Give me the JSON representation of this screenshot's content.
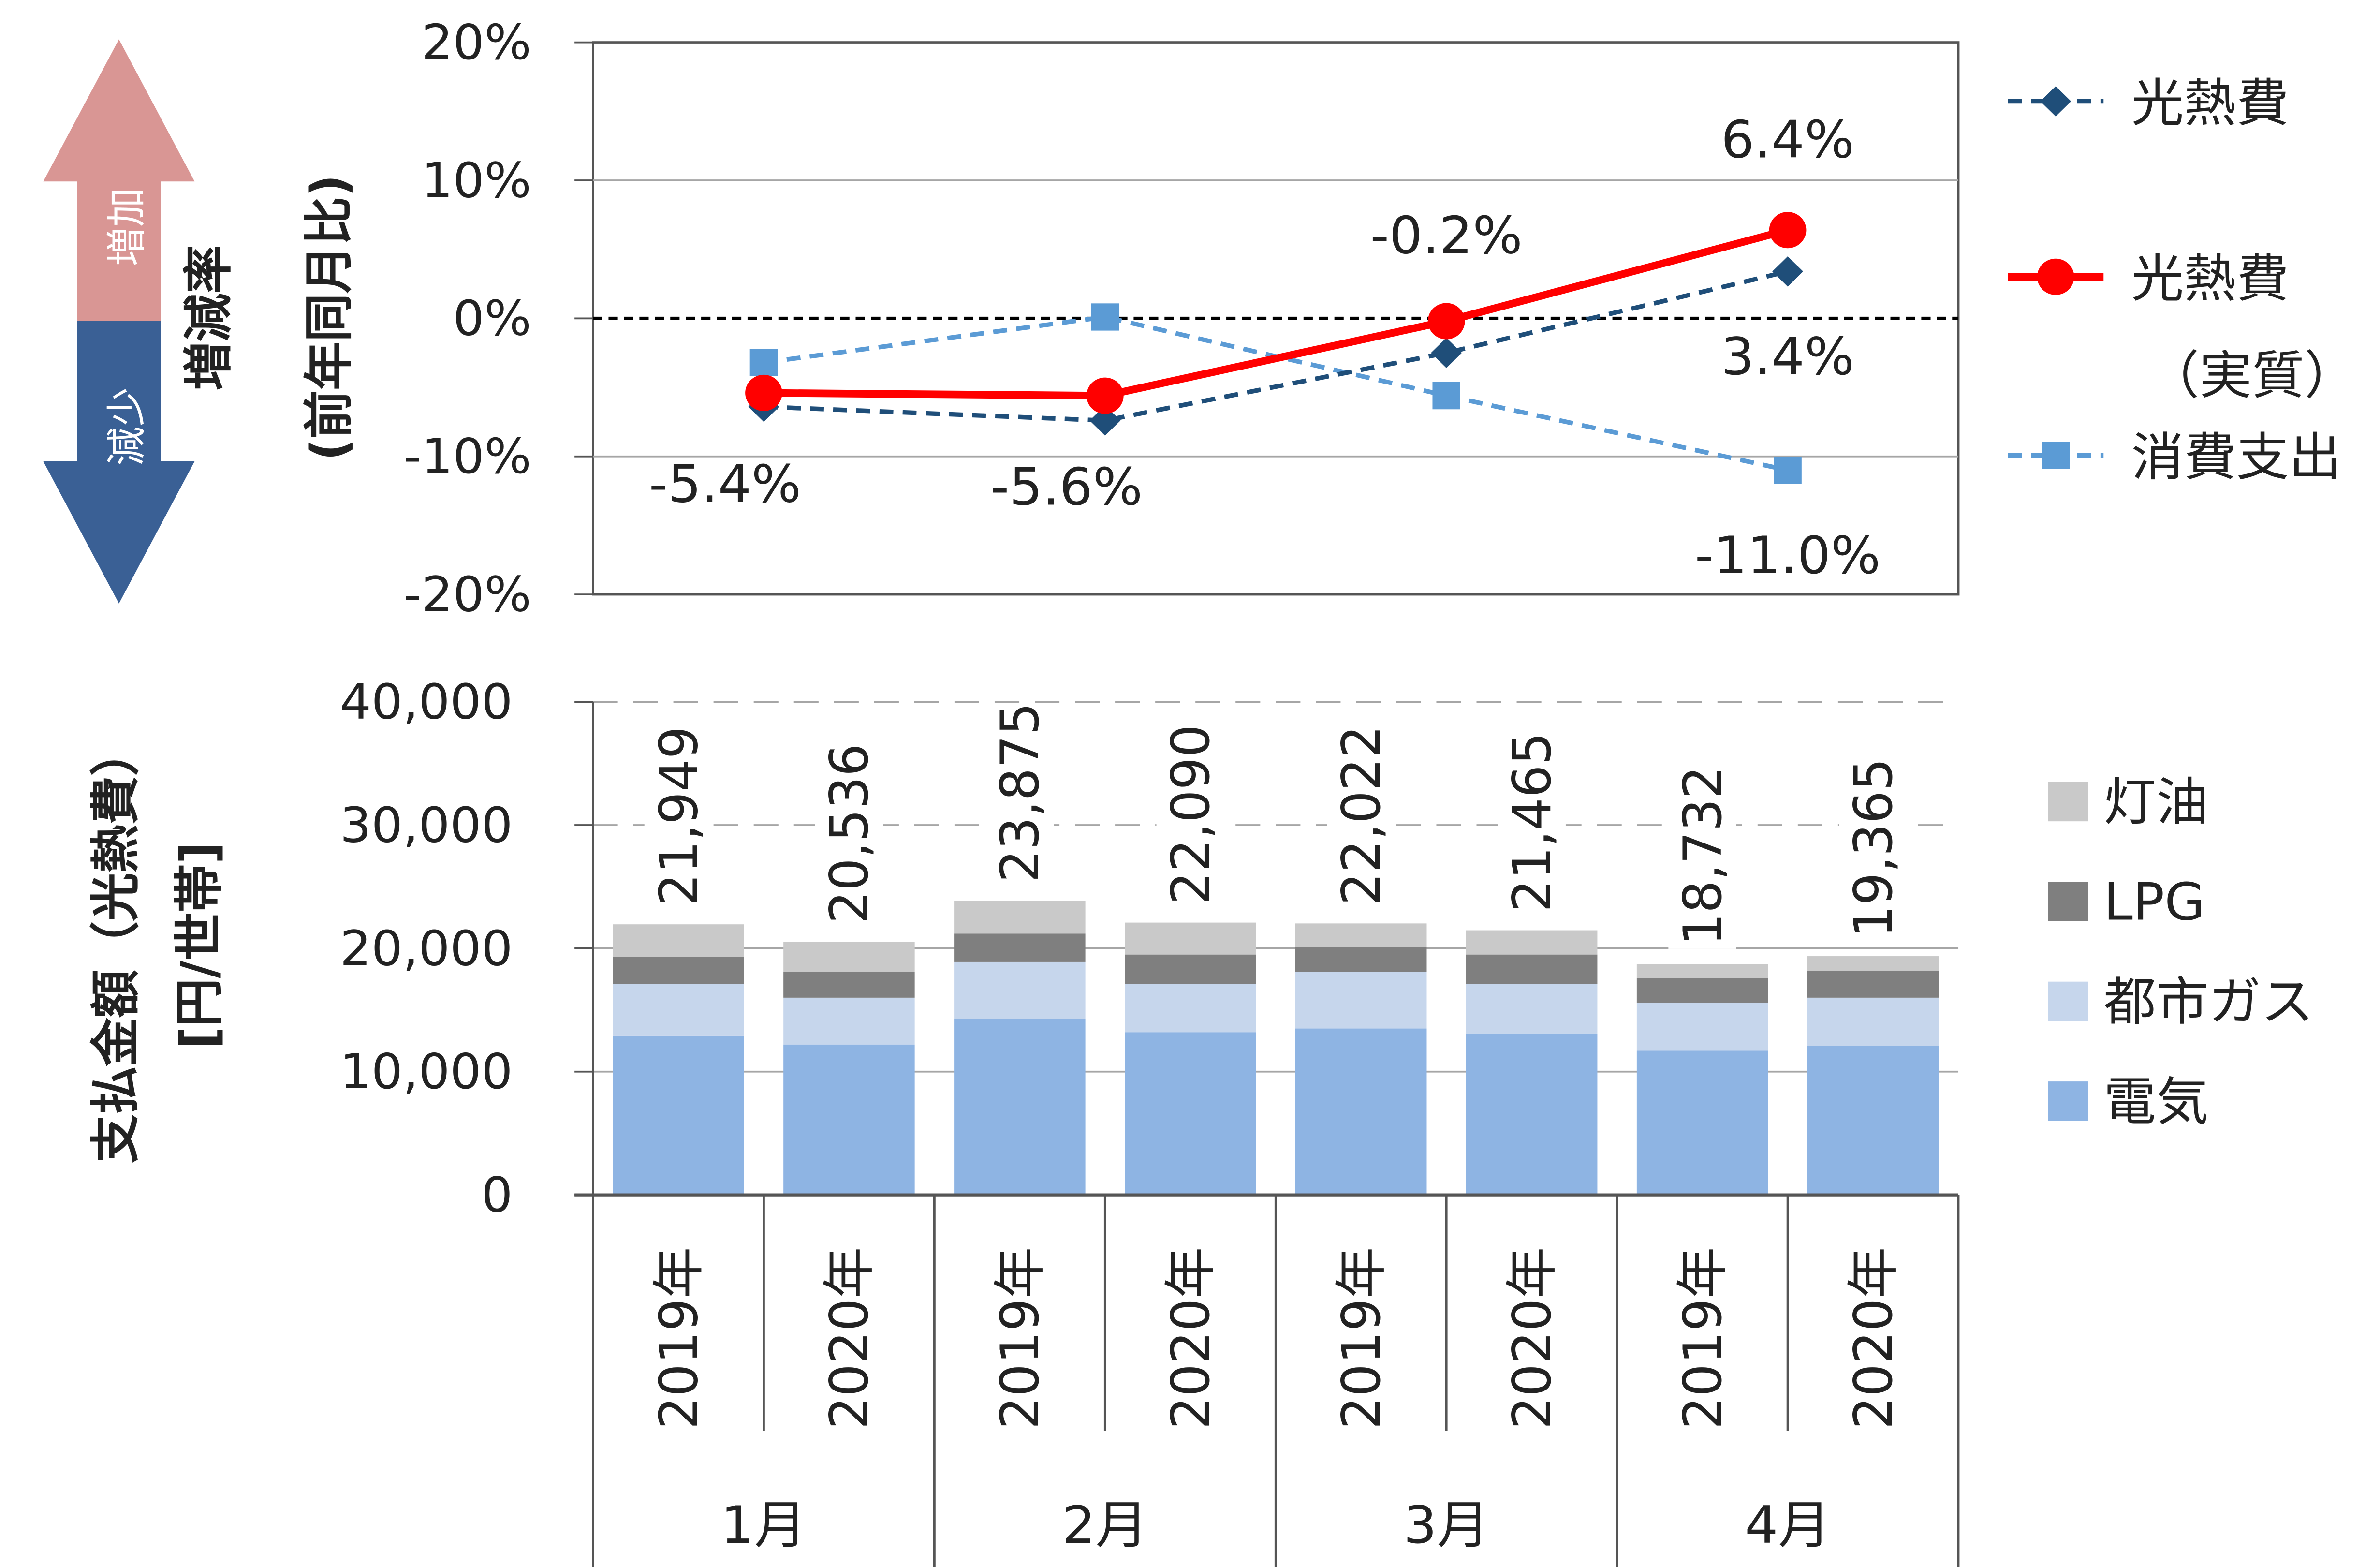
{
  "top_axis_title_line1": "増減率",
  "top_axis_title_line2": "(前年同月比)",
  "arrow_up_label": "増加",
  "arrow_down_label": "減少",
  "bottom_axis_title_line1": "支払金額（光熱費）",
  "bottom_axis_title_line2": "[円/世帯]",
  "colors": {
    "nominal": "#1f4e79",
    "real": "#ff0000",
    "consumption": "#5b9bd5",
    "arrow_up": "#d99694",
    "arrow_down": "#3a6095",
    "electricity": "#8eb4e3",
    "city_gas": "#c6d6ec",
    "lpg": "#7f7f7f",
    "kerosene": "#c9c9c9"
  },
  "chart_data": [
    {
      "type": "line",
      "categories": [
        "1月",
        "2月",
        "3月",
        "4月"
      ],
      "ylabel": "増減率(前年同月比)",
      "ylim": [
        -20,
        20
      ],
      "yticks": [
        "20%",
        "10%",
        "0%",
        "-10%",
        "-20%"
      ],
      "grid": true,
      "legend_position": "right",
      "series": [
        {
          "name": "光熱費",
          "style": "dashed-diamond",
          "values": [
            -6.4,
            -7.4,
            -2.5,
            3.4
          ]
        },
        {
          "name": "光熱費（実質）",
          "legend_line1": "光熱費",
          "legend_line2": "（実質）",
          "style": "solid-circle",
          "values": [
            -5.4,
            -5.6,
            -0.2,
            6.4
          ]
        },
        {
          "name": "消費支出",
          "style": "dashed-square",
          "values": [
            -3.2,
            0.1,
            -5.6,
            -11.0
          ]
        }
      ],
      "data_labels": [
        "-5.4%",
        "-5.6%",
        "-0.2%",
        "6.4%",
        "3.4%",
        "-11.0%"
      ]
    },
    {
      "type": "bar",
      "stacked": true,
      "ylabel": "支払金額（光熱費） [円/世帯]",
      "ylim": [
        0,
        40000
      ],
      "yticks": [
        "40,000",
        "30,000",
        "20,000",
        "10,000",
        "0"
      ],
      "grid": true,
      "legend_position": "right",
      "months": [
        "1月",
        "2月",
        "3月",
        "4月"
      ],
      "years": [
        "2019年",
        "2020年",
        "2019年",
        "2020年",
        "2019年",
        "2020年",
        "2019年",
        "2020年"
      ],
      "totals": [
        21949,
        20536,
        23875,
        22090,
        22022,
        21465,
        18732,
        19365
      ],
      "total_labels": [
        "21,949",
        "20,536",
        "23,875",
        "22,090",
        "22,022",
        "21,465",
        "18,732",
        "19,365"
      ],
      "series": [
        {
          "name": "電気",
          "values": [
            12900,
            12200,
            14300,
            13200,
            13500,
            13100,
            11700,
            12100
          ]
        },
        {
          "name": "都市ガス",
          "values": [
            4200,
            3800,
            4600,
            3900,
            4600,
            4000,
            3900,
            3900
          ]
        },
        {
          "name": "LPG",
          "values": [
            2200,
            2100,
            2300,
            2400,
            2000,
            2400,
            2000,
            2200
          ]
        },
        {
          "name": "灯油",
          "values": [
            2649,
            2436,
            2675,
            2590,
            1922,
            1965,
            1132,
            1165
          ]
        }
      ],
      "legend_order": [
        "灯油",
        "LPG",
        "都市ガス",
        "電気"
      ]
    }
  ]
}
